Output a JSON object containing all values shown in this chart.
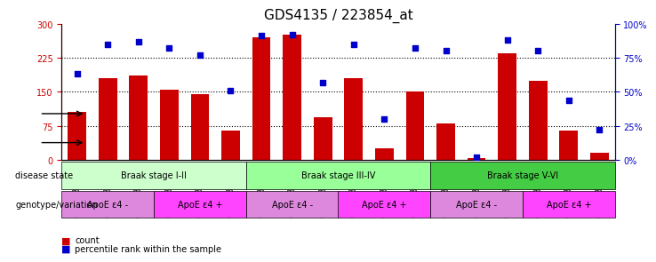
{
  "title": "GDS4135 / 223854_at",
  "samples": [
    "GSM735097",
    "GSM735098",
    "GSM735099",
    "GSM735094",
    "GSM735095",
    "GSM735096",
    "GSM735103",
    "GSM735104",
    "GSM735105",
    "GSM735100",
    "GSM735101",
    "GSM735102",
    "GSM735109",
    "GSM735110",
    "GSM735111",
    "GSM735106",
    "GSM735107",
    "GSM735108"
  ],
  "counts": [
    105,
    180,
    185,
    155,
    145,
    65,
    270,
    275,
    95,
    180,
    25,
    150,
    80,
    5,
    235,
    175,
    65,
    15
  ],
  "percentiles": [
    63,
    85,
    87,
    82,
    77,
    51,
    91,
    92,
    57,
    85,
    30,
    82,
    80,
    2,
    88,
    80,
    44,
    22
  ],
  "ylim_left": [
    0,
    300
  ],
  "ylim_right": [
    0,
    100
  ],
  "yticks_left": [
    0,
    75,
    150,
    225,
    300
  ],
  "yticks_right": [
    0,
    25,
    50,
    75,
    100
  ],
  "bar_color": "#cc0000",
  "dot_color": "#0000cc",
  "grid_color": "#000000",
  "disease_state_groups": [
    {
      "label": "Braak stage I-II",
      "start": 0,
      "end": 6,
      "color": "#ccffcc"
    },
    {
      "label": "Braak stage III-IV",
      "start": 6,
      "end": 12,
      "color": "#99ff99"
    },
    {
      "label": "Braak stage V-VI",
      "start": 12,
      "end": 18,
      "color": "#44cc44"
    }
  ],
  "genotype_groups": [
    {
      "label": "ApoE ε4 -",
      "start": 0,
      "end": 3,
      "color": "#dd88dd"
    },
    {
      "label": "ApoE ε4 +",
      "start": 3,
      "end": 6,
      "color": "#ff44ff"
    },
    {
      "label": "ApoE ε4 -",
      "start": 6,
      "end": 9,
      "color": "#dd88dd"
    },
    {
      "label": "ApoE ε4 +",
      "start": 9,
      "end": 12,
      "color": "#ff44ff"
    },
    {
      "label": "ApoE ε4 -",
      "start": 12,
      "end": 15,
      "color": "#dd88dd"
    },
    {
      "label": "ApoE ε4 +",
      "start": 15,
      "end": 18,
      "color": "#ff44ff"
    }
  ],
  "legend_items": [
    {
      "label": "count",
      "color": "#cc0000",
      "marker": "s"
    },
    {
      "label": "percentile rank within the sample",
      "color": "#0000cc",
      "marker": "s"
    }
  ],
  "ylabel_left": "",
  "ylabel_right": "",
  "title_fontsize": 11,
  "tick_fontsize": 7,
  "label_fontsize": 8
}
